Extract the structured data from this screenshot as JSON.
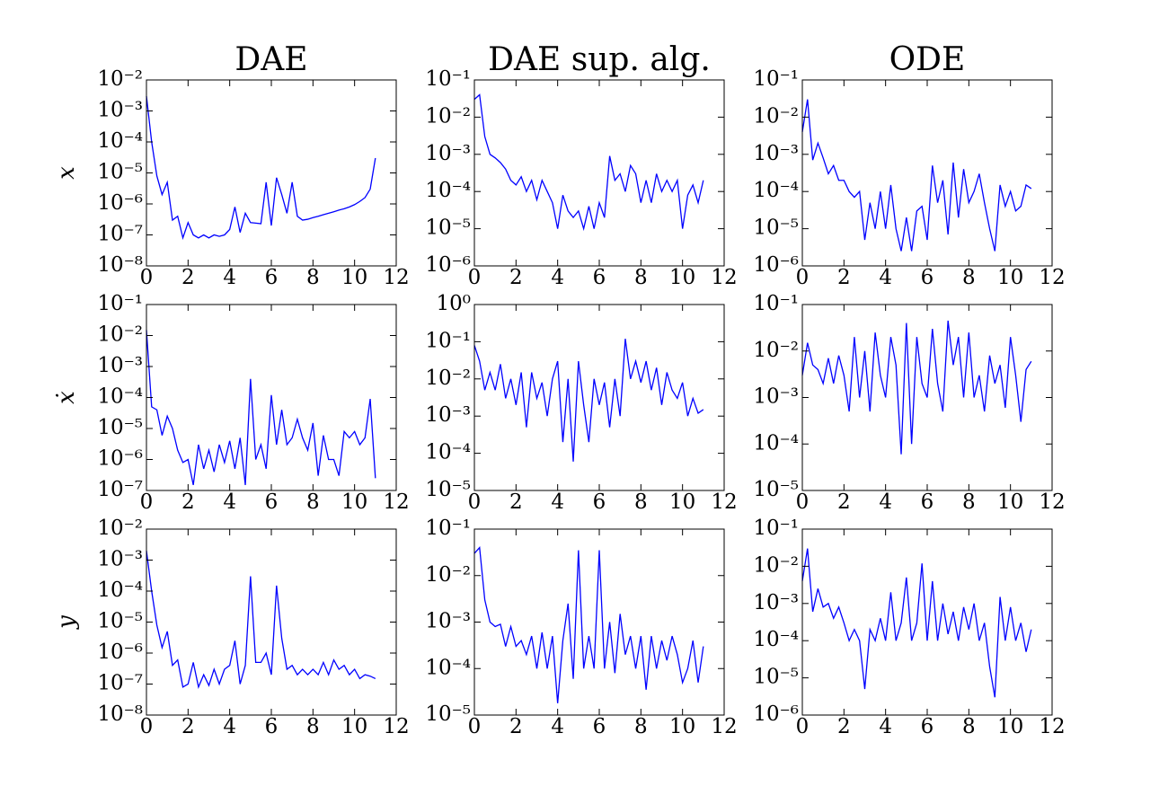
{
  "chart_data": [
    {
      "type": "line",
      "title": "DAE",
      "ylabel": "x",
      "yscale": "log",
      "color": "#0000ff",
      "x": [
        0,
        0.25,
        0.5,
        0.75,
        1,
        1.25,
        1.5,
        1.75,
        2,
        2.25,
        2.5,
        2.75,
        3,
        3.25,
        3.5,
        3.75,
        4,
        4.25,
        4.5,
        4.75,
        5,
        5.25,
        5.5,
        5.75,
        6,
        6.25,
        6.5,
        6.75,
        7,
        7.25,
        7.5,
        7.75,
        8,
        8.25,
        8.5,
        8.75,
        9,
        9.25,
        9.5,
        9.75,
        10,
        10.25,
        10.5,
        10.75,
        11
      ],
      "values": [
        0.003,
        0.0001,
        8e-06,
        2e-06,
        5e-06,
        3e-07,
        4e-07,
        8e-08,
        2.5e-07,
        1e-07,
        8e-08,
        1e-07,
        8e-08,
        1e-07,
        9e-08,
        1e-07,
        1.5e-07,
        8e-07,
        1.2e-07,
        5e-07,
        2.5e-07,
        2.4e-07,
        2.3e-07,
        5e-06,
        2e-07,
        7e-06,
        2e-06,
        5e-07,
        5e-06,
        4e-07,
        3e-07,
        3.2e-07,
        3.6e-07,
        4e-07,
        4.5e-07,
        5e-07,
        5.6e-07,
        6.3e-07,
        7e-07,
        8e-07,
        9.5e-07,
        1.2e-06,
        1.6e-06,
        3e-06,
        3e-05
      ],
      "xlim": [
        0,
        12
      ],
      "xticks": [
        0,
        2,
        4,
        6,
        8,
        10,
        12
      ],
      "ylim": [
        1e-08,
        0.01
      ],
      "yticks": [
        {
          "value": 1e-08,
          "label": "10⁻⁸"
        },
        {
          "value": 1e-07,
          "label": "10⁻⁷"
        },
        {
          "value": 1e-06,
          "label": "10⁻⁶"
        },
        {
          "value": 1e-05,
          "label": "10⁻⁵"
        },
        {
          "value": 0.0001,
          "label": "10⁻⁴"
        },
        {
          "value": 0.001,
          "label": "10⁻³"
        },
        {
          "value": 0.01,
          "label": "10⁻²"
        }
      ]
    },
    {
      "type": "line",
      "title": "DAE sup. alg.",
      "yscale": "log",
      "color": "#0000ff",
      "x": [
        0,
        0.25,
        0.5,
        0.75,
        1,
        1.25,
        1.5,
        1.75,
        2,
        2.25,
        2.5,
        2.75,
        3,
        3.25,
        3.5,
        3.75,
        4,
        4.25,
        4.5,
        4.75,
        5,
        5.25,
        5.5,
        5.75,
        6,
        6.25,
        6.5,
        6.75,
        7,
        7.25,
        7.5,
        7.75,
        8,
        8.25,
        8.5,
        8.75,
        9,
        9.25,
        9.5,
        9.75,
        10,
        10.25,
        10.5,
        10.75,
        11
      ],
      "values": [
        0.03,
        0.04,
        0.003,
        0.001,
        0.0008,
        0.0006,
        0.0004,
        0.0002,
        0.00015,
        0.00025,
        0.0001,
        0.0002,
        6e-05,
        0.0002,
        0.0001,
        5e-05,
        1e-05,
        8e-05,
        3e-05,
        2e-05,
        3e-05,
        1e-05,
        4e-05,
        1e-05,
        5e-05,
        2e-05,
        0.0009,
        0.0002,
        0.0003,
        0.0001,
        0.0005,
        0.0003,
        5e-05,
        0.0002,
        5e-05,
        0.0003,
        0.0001,
        0.0002,
        0.0001,
        0.0002,
        1e-05,
        8e-05,
        0.00015,
        5e-05,
        0.0002
      ],
      "xlim": [
        0,
        12
      ],
      "xticks": [
        0,
        2,
        4,
        6,
        8,
        10,
        12
      ],
      "ylim": [
        1e-06,
        0.1
      ],
      "yticks": [
        {
          "value": 1e-06,
          "label": "10⁻⁶"
        },
        {
          "value": 1e-05,
          "label": "10⁻⁵"
        },
        {
          "value": 0.0001,
          "label": "10⁻⁴"
        },
        {
          "value": 0.001,
          "label": "10⁻³"
        },
        {
          "value": 0.01,
          "label": "10⁻²"
        },
        {
          "value": 0.1,
          "label": "10⁻¹"
        }
      ]
    },
    {
      "type": "line",
      "title": "ODE",
      "yscale": "log",
      "color": "#0000ff",
      "x": [
        0,
        0.25,
        0.5,
        0.75,
        1,
        1.25,
        1.5,
        1.75,
        2,
        2.25,
        2.5,
        2.75,
        3,
        3.25,
        3.5,
        3.75,
        4,
        4.25,
        4.5,
        4.75,
        5,
        5.25,
        5.5,
        5.75,
        6,
        6.25,
        6.5,
        6.75,
        7,
        7.25,
        7.5,
        7.75,
        8,
        8.25,
        8.5,
        8.75,
        9,
        9.25,
        9.5,
        9.75,
        10,
        10.25,
        10.5,
        10.75,
        11
      ],
      "values": [
        0.004,
        0.03,
        0.0007,
        0.002,
        0.0008,
        0.0003,
        0.0005,
        0.0002,
        0.0002,
        0.0001,
        7e-05,
        0.0001,
        5e-06,
        5e-05,
        1e-05,
        0.0001,
        1e-05,
        0.00015,
        1e-05,
        2.5e-06,
        2e-05,
        2.5e-06,
        3e-05,
        4e-05,
        5e-06,
        0.0005,
        5e-05,
        0.0002,
        7e-06,
        0.0006,
        2e-05,
        0.0004,
        5e-05,
        0.0001,
        0.0003,
        5e-05,
        1e-05,
        2.5e-06,
        0.00015,
        4e-05,
        0.0001,
        3e-05,
        4e-05,
        0.00015,
        0.00012
      ],
      "xlim": [
        0,
        12
      ],
      "xticks": [
        0,
        2,
        4,
        6,
        8,
        10,
        12
      ],
      "ylim": [
        1e-06,
        0.1
      ],
      "yticks": [
        {
          "value": 1e-06,
          "label": "10⁻⁶"
        },
        {
          "value": 1e-05,
          "label": "10⁻⁵"
        },
        {
          "value": 0.0001,
          "label": "10⁻⁴"
        },
        {
          "value": 0.001,
          "label": "10⁻³"
        },
        {
          "value": 0.01,
          "label": "10⁻²"
        },
        {
          "value": 0.1,
          "label": "10⁻¹"
        }
      ]
    },
    {
      "type": "line",
      "ylabel": "ẋ",
      "yscale": "log",
      "color": "#0000ff",
      "x": [
        0,
        0.25,
        0.5,
        0.75,
        1,
        1.25,
        1.5,
        1.75,
        2,
        2.25,
        2.5,
        2.75,
        3,
        3.25,
        3.5,
        3.75,
        4,
        4.25,
        4.5,
        4.75,
        5,
        5.25,
        5.5,
        5.75,
        6,
        6.25,
        6.5,
        6.75,
        7,
        7.25,
        7.5,
        7.75,
        8,
        8.25,
        8.5,
        8.75,
        9,
        9.25,
        9.5,
        9.75,
        10,
        10.25,
        10.5,
        10.75,
        11
      ],
      "values": [
        0.015,
        5e-05,
        4e-05,
        6e-06,
        2.5e-05,
        1e-05,
        2e-06,
        8e-07,
        1e-06,
        1.5e-07,
        3e-06,
        5e-07,
        2e-06,
        4e-07,
        3e-06,
        8e-07,
        4e-06,
        5e-07,
        5e-06,
        1.5e-07,
        0.0004,
        1e-06,
        3e-06,
        5e-07,
        0.00012,
        3e-06,
        4e-05,
        3e-06,
        5e-06,
        2e-05,
        5e-06,
        2e-06,
        1.5e-05,
        3e-07,
        6e-06,
        1e-06,
        1e-06,
        3e-07,
        8e-06,
        5e-06,
        8e-06,
        3e-06,
        5e-06,
        9e-05,
        2.5e-07
      ],
      "xlim": [
        0,
        12
      ],
      "xticks": [
        0,
        2,
        4,
        6,
        8,
        10,
        12
      ],
      "ylim": [
        1e-07,
        0.1
      ],
      "yticks": [
        {
          "value": 1e-07,
          "label": "10⁻⁷"
        },
        {
          "value": 1e-06,
          "label": "10⁻⁶"
        },
        {
          "value": 1e-05,
          "label": "10⁻⁵"
        },
        {
          "value": 0.0001,
          "label": "10⁻⁴"
        },
        {
          "value": 0.001,
          "label": "10⁻³"
        },
        {
          "value": 0.01,
          "label": "10⁻²"
        },
        {
          "value": 0.1,
          "label": "10⁻¹"
        }
      ]
    },
    {
      "type": "line",
      "yscale": "log",
      "color": "#0000ff",
      "x": [
        0,
        0.25,
        0.5,
        0.75,
        1,
        1.25,
        1.5,
        1.75,
        2,
        2.25,
        2.5,
        2.75,
        3,
        3.25,
        3.5,
        3.75,
        4,
        4.25,
        4.5,
        4.75,
        5,
        5.25,
        5.5,
        5.75,
        6,
        6.25,
        6.5,
        6.75,
        7,
        7.25,
        7.5,
        7.75,
        8,
        8.25,
        8.5,
        8.75,
        9,
        9.25,
        9.5,
        9.75,
        10,
        10.25,
        10.5,
        10.75,
        11
      ],
      "values": [
        0.08,
        0.03,
        0.005,
        0.015,
        0.005,
        0.025,
        0.003,
        0.01,
        0.002,
        0.015,
        0.0005,
        0.015,
        0.003,
        0.008,
        0.001,
        0.01,
        0.03,
        0.0002,
        0.01,
        6e-05,
        0.03,
        0.002,
        0.0002,
        0.01,
        0.002,
        0.008,
        0.0005,
        0.01,
        0.001,
        0.12,
        0.01,
        0.03,
        0.008,
        0.03,
        0.005,
        0.02,
        0.002,
        0.015,
        0.005,
        0.003,
        0.008,
        0.001,
        0.003,
        0.0012,
        0.0015
      ],
      "xlim": [
        0,
        12
      ],
      "xticks": [
        0,
        2,
        4,
        6,
        8,
        10,
        12
      ],
      "ylim": [
        1e-05,
        1
      ],
      "yticks": [
        {
          "value": 1e-05,
          "label": "10⁻⁵"
        },
        {
          "value": 0.0001,
          "label": "10⁻⁴"
        },
        {
          "value": 0.001,
          "label": "10⁻³"
        },
        {
          "value": 0.01,
          "label": "10⁻²"
        },
        {
          "value": 0.1,
          "label": "10⁻¹"
        },
        {
          "value": 1,
          "label": "10⁰"
        }
      ]
    },
    {
      "type": "line",
      "yscale": "log",
      "color": "#0000ff",
      "x": [
        0,
        0.25,
        0.5,
        0.75,
        1,
        1.25,
        1.5,
        1.75,
        2,
        2.25,
        2.5,
        2.75,
        3,
        3.25,
        3.5,
        3.75,
        4,
        4.25,
        4.5,
        4.75,
        5,
        5.25,
        5.5,
        5.75,
        6,
        6.25,
        6.5,
        6.75,
        7,
        7.25,
        7.5,
        7.75,
        8,
        8.25,
        8.5,
        8.75,
        9,
        9.25,
        9.5,
        9.75,
        10,
        10.25,
        10.5,
        10.75,
        11
      ],
      "values": [
        0.003,
        0.015,
        0.005,
        0.004,
        0.002,
        0.007,
        0.002,
        0.008,
        0.003,
        0.0005,
        0.02,
        0.001,
        0.01,
        0.0005,
        0.025,
        0.003,
        0.001,
        0.02,
        0.005,
        6e-05,
        0.04,
        0.0001,
        0.02,
        0.002,
        0.001,
        0.03,
        0.002,
        0.0005,
        0.045,
        0.005,
        0.02,
        0.001,
        0.025,
        0.001,
        0.003,
        0.0005,
        0.008,
        0.002,
        0.005,
        0.0006,
        0.02,
        0.003,
        0.0003,
        0.004,
        0.006
      ],
      "xlim": [
        0,
        12
      ],
      "xticks": [
        0,
        2,
        4,
        6,
        8,
        10,
        12
      ],
      "ylim": [
        1e-05,
        0.1
      ],
      "yticks": [
        {
          "value": 1e-05,
          "label": "10⁻⁵"
        },
        {
          "value": 0.0001,
          "label": "10⁻⁴"
        },
        {
          "value": 0.001,
          "label": "10⁻³"
        },
        {
          "value": 0.01,
          "label": "10⁻²"
        },
        {
          "value": 0.1,
          "label": "10⁻¹"
        }
      ]
    },
    {
      "type": "line",
      "ylabel": "y",
      "yscale": "log",
      "color": "#0000ff",
      "x": [
        0,
        0.25,
        0.5,
        0.75,
        1,
        1.25,
        1.5,
        1.75,
        2,
        2.25,
        2.5,
        2.75,
        3,
        3.25,
        3.5,
        3.75,
        4,
        4.25,
        4.5,
        4.75,
        5,
        5.25,
        5.5,
        5.75,
        6,
        6.25,
        6.5,
        6.75,
        7,
        7.25,
        7.5,
        7.75,
        8,
        8.25,
        8.5,
        8.75,
        9,
        9.25,
        9.5,
        9.75,
        10,
        10.25,
        10.5,
        10.75,
        11
      ],
      "values": [
        0.002,
        0.0001,
        8e-06,
        1.5e-06,
        5e-06,
        4e-07,
        6e-07,
        8e-08,
        1e-07,
        5e-07,
        8e-08,
        2e-07,
        9e-08,
        3e-07,
        1e-07,
        3e-07,
        4e-07,
        2.5e-06,
        1e-07,
        4e-07,
        0.0003,
        5e-07,
        5e-07,
        1e-06,
        2e-07,
        0.00015,
        3e-06,
        3e-07,
        4e-07,
        2e-07,
        3e-07,
        2e-07,
        3e-07,
        2e-07,
        5e-07,
        2e-07,
        6e-07,
        3e-07,
        4e-07,
        2e-07,
        3e-07,
        1.5e-07,
        2e-07,
        1.8e-07,
        1.5e-07
      ],
      "xlim": [
        0,
        12
      ],
      "xticks": [
        0,
        2,
        4,
        6,
        8,
        10,
        12
      ],
      "ylim": [
        1e-08,
        0.01
      ],
      "yticks": [
        {
          "value": 1e-08,
          "label": "10⁻⁸"
        },
        {
          "value": 1e-07,
          "label": "10⁻⁷"
        },
        {
          "value": 1e-06,
          "label": "10⁻⁶"
        },
        {
          "value": 1e-05,
          "label": "10⁻⁵"
        },
        {
          "value": 0.0001,
          "label": "10⁻⁴"
        },
        {
          "value": 0.001,
          "label": "10⁻³"
        },
        {
          "value": 0.01,
          "label": "10⁻²"
        }
      ]
    },
    {
      "type": "line",
      "yscale": "log",
      "color": "#0000ff",
      "x": [
        0,
        0.25,
        0.5,
        0.75,
        1,
        1.25,
        1.5,
        1.75,
        2,
        2.25,
        2.5,
        2.75,
        3,
        3.25,
        3.5,
        3.75,
        4,
        4.25,
        4.5,
        4.75,
        5,
        5.25,
        5.5,
        5.75,
        6,
        6.25,
        6.5,
        6.75,
        7,
        7.25,
        7.5,
        7.75,
        8,
        8.25,
        8.5,
        8.75,
        9,
        9.25,
        9.5,
        9.75,
        10,
        10.25,
        10.5,
        10.75,
        11
      ],
      "values": [
        0.03,
        0.04,
        0.003,
        0.001,
        0.0008,
        0.0009,
        0.0003,
        0.0008,
        0.0003,
        0.0004,
        0.0002,
        0.0005,
        0.0001,
        0.0006,
        0.0001,
        0.0005,
        1.8e-05,
        0.0004,
        0.0025,
        6e-05,
        0.035,
        0.0001,
        0.0005,
        0.0001,
        0.035,
        0.0001,
        0.001,
        8e-05,
        0.0015,
        0.0002,
        0.0005,
        0.0001,
        0.0005,
        3.5e-05,
        0.0005,
        0.0001,
        0.0004,
        0.00015,
        0.0005,
        0.0002,
        5e-05,
        0.0001,
        0.0004,
        5e-05,
        0.0003
      ],
      "xlim": [
        0,
        12
      ],
      "xticks": [
        0,
        2,
        4,
        6,
        8,
        10,
        12
      ],
      "ylim": [
        1e-05,
        0.1
      ],
      "yticks": [
        {
          "value": 1e-05,
          "label": "10⁻⁵"
        },
        {
          "value": 0.0001,
          "label": "10⁻⁴"
        },
        {
          "value": 0.001,
          "label": "10⁻³"
        },
        {
          "value": 0.01,
          "label": "10⁻²"
        },
        {
          "value": 0.1,
          "label": "10⁻¹"
        }
      ]
    },
    {
      "type": "line",
      "yscale": "log",
      "color": "#0000ff",
      "x": [
        0,
        0.25,
        0.5,
        0.75,
        1,
        1.25,
        1.5,
        1.75,
        2,
        2.25,
        2.5,
        2.75,
        3,
        3.25,
        3.5,
        3.75,
        4,
        4.25,
        4.5,
        4.75,
        5,
        5.25,
        5.5,
        5.75,
        6,
        6.25,
        6.5,
        6.75,
        7,
        7.25,
        7.5,
        7.75,
        8,
        8.25,
        8.5,
        8.75,
        9,
        9.25,
        9.5,
        9.75,
        10,
        10.25,
        10.5,
        10.75,
        11
      ],
      "values": [
        0.004,
        0.03,
        0.0006,
        0.0025,
        0.0008,
        0.001,
        0.0004,
        0.0008,
        0.0003,
        0.0001,
        0.0002,
        0.0001,
        5e-06,
        0.0002,
        0.0001,
        0.0004,
        0.0001,
        0.002,
        0.0001,
        0.0003,
        0.005,
        0.0001,
        0.0003,
        0.012,
        0.0001,
        0.004,
        0.0001,
        0.001,
        0.00015,
        0.0006,
        0.0001,
        0.0008,
        0.0002,
        0.001,
        0.0001,
        0.0003,
        2e-05,
        3e-06,
        0.0015,
        0.0001,
        0.0008,
        0.0001,
        0.0003,
        5e-05,
        0.0002
      ],
      "xlim": [
        0,
        12
      ],
      "xticks": [
        0,
        2,
        4,
        6,
        8,
        10,
        12
      ],
      "ylim": [
        1e-06,
        0.1
      ],
      "yticks": [
        {
          "value": 1e-06,
          "label": "10⁻⁶"
        },
        {
          "value": 1e-05,
          "label": "10⁻⁵"
        },
        {
          "value": 0.0001,
          "label": "10⁻⁴"
        },
        {
          "value": 0.001,
          "label": "10⁻³"
        },
        {
          "value": 0.01,
          "label": "10⁻²"
        },
        {
          "value": 0.1,
          "label": "10⁻¹"
        }
      ]
    }
  ]
}
